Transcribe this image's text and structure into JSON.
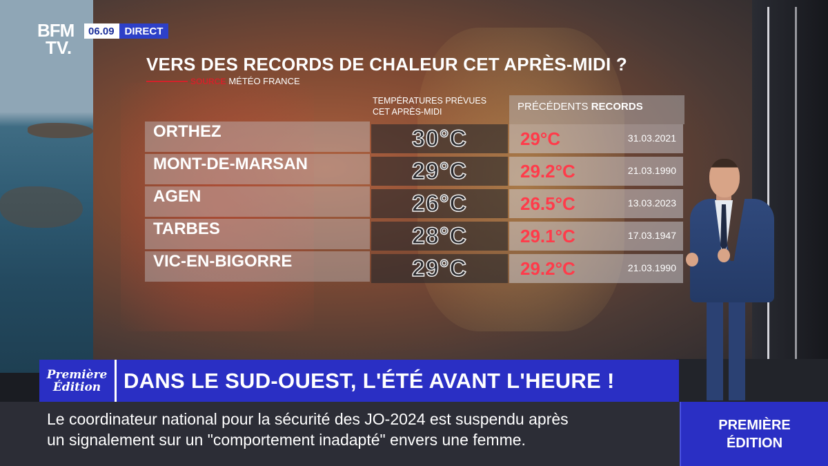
{
  "channel": {
    "logo_text_1": "BFM",
    "logo_text_2": "TV.",
    "time": "06.09",
    "live_label": "DIRECT"
  },
  "graphic": {
    "title": "VERS DES RECORDS DE CHALEUR CET APRÈS-MIDI ?",
    "source_label": "SOURCE",
    "source_name": "MÉTÉO FRANCE",
    "forecast_header_1": "TEMPÉRATURES PRÉVUES",
    "forecast_header_2": "CET APRÈS-MIDI",
    "records_header_prefix": "PRÉCÉDENTS",
    "records_header_bold": "RECORDS",
    "rows": [
      {
        "city": "ORTHEZ",
        "forecast": "30°C",
        "record": "29°C",
        "date": "31.03.2021"
      },
      {
        "city": "MONT-DE-MARSAN",
        "forecast": "29°C",
        "record": "29.2°C",
        "date": "21.03.1990"
      },
      {
        "city": "AGEN",
        "forecast": "26°C",
        "record": "26.5°C",
        "date": "13.03.2023"
      },
      {
        "city": "TARBES",
        "forecast": "28°C",
        "record": "29.1°C",
        "date": "17.03.1947"
      },
      {
        "city": "VIC-EN-BIGORRE",
        "forecast": "29°C",
        "record": "29.2°C",
        "date": "21.03.1990"
      }
    ]
  },
  "lower_third": {
    "show_logo_line_1": "Première",
    "show_logo_line_2": "Édition",
    "headline": "DANS LE SUD-OUEST, L'ÉTÉ AVANT L'HEURE !"
  },
  "ticker": {
    "line_1": "Le coordinateur national pour la sécurité des JO-2024 est suspendu après",
    "line_2": "un signalement sur un \"comportement inadapté\" envers une femme."
  },
  "show_badge": {
    "line_1": "PREMIÈRE",
    "line_2": "ÉDITION"
  },
  "colors": {
    "brand_blue": "#2a2fc4",
    "record_red": "#ff3b4a",
    "source_red": "#d3222a"
  }
}
